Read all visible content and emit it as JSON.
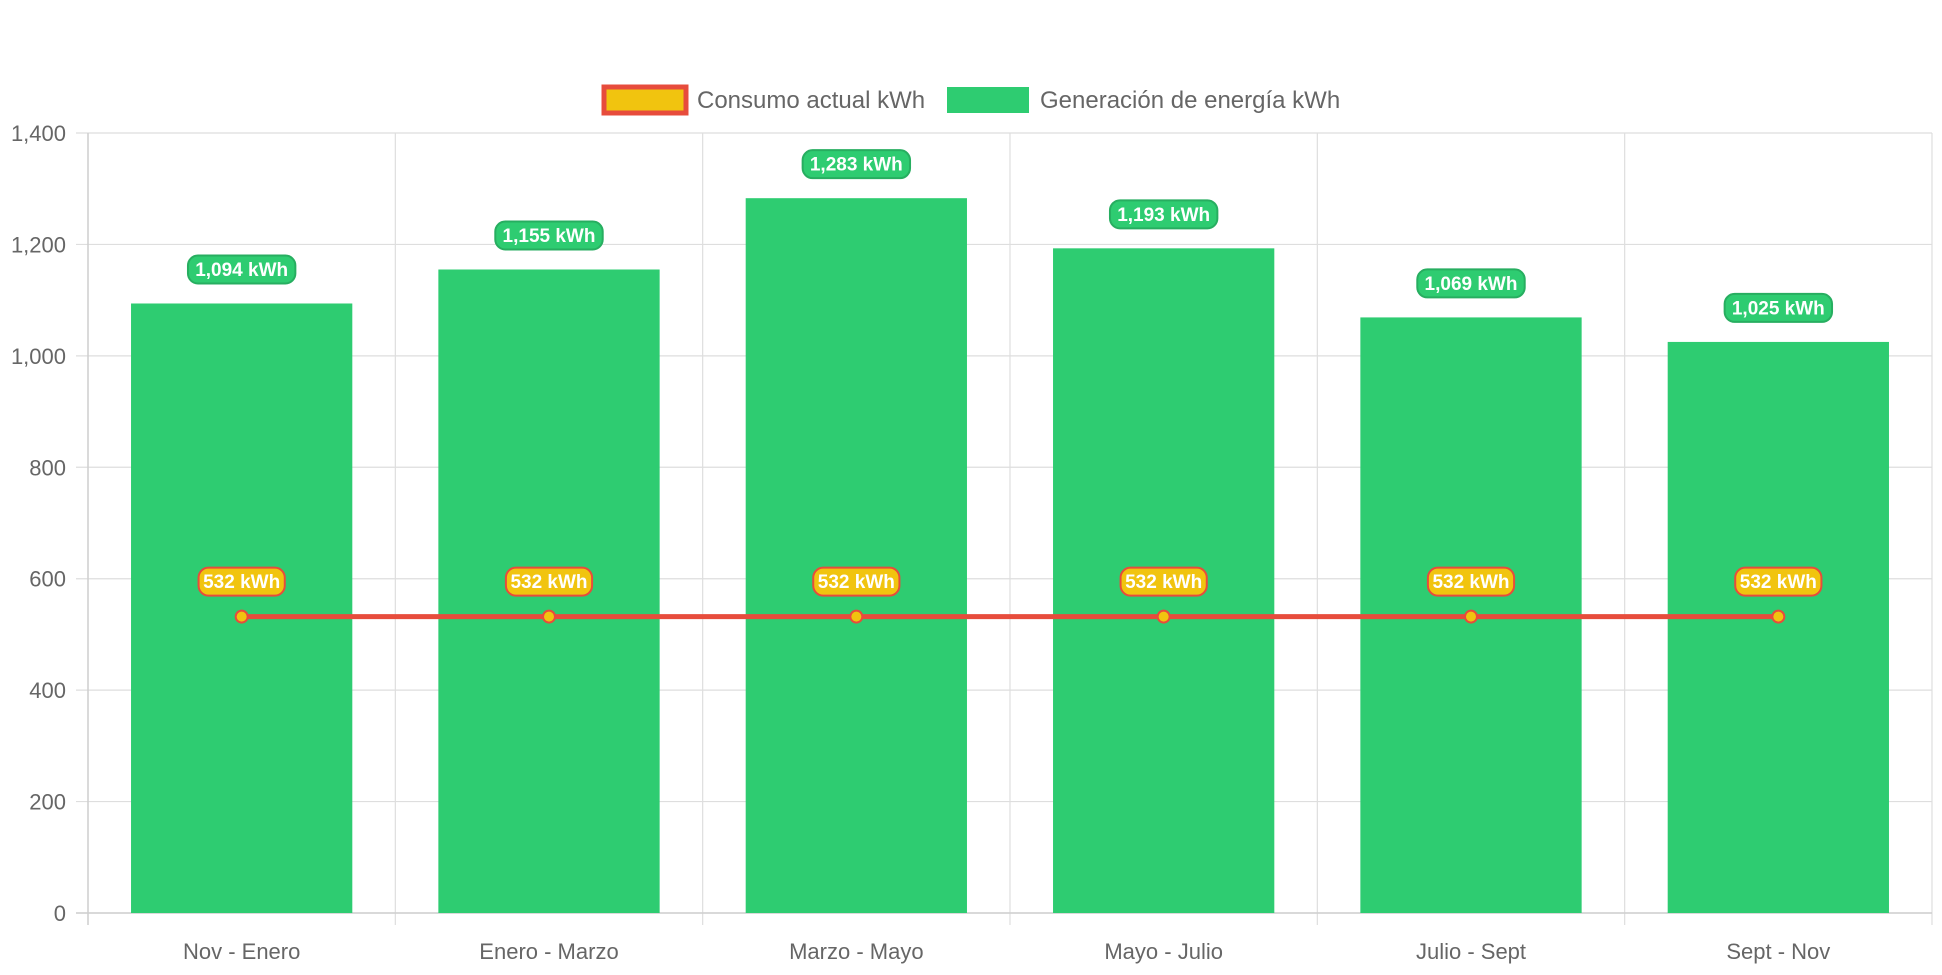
{
  "chart_data": {
    "type": "bar",
    "title": "",
    "xlabel": "",
    "ylabel": "",
    "categories": [
      "Nov - Enero",
      "Enero - Marzo",
      "Marzo - Mayo",
      "Mayo - Julio",
      "Julio - Sept",
      "Sept - Nov"
    ],
    "ylim": [
      0,
      1400
    ],
    "yticks": [
      0,
      200,
      400,
      600,
      800,
      1000,
      1200,
      1400
    ],
    "ytick_labels": [
      "0",
      "200",
      "400",
      "600",
      "800",
      "1,000",
      "1,200",
      "1,400"
    ],
    "grid": true,
    "legend_position": "top-center",
    "series": [
      {
        "name": "Consumo actual kWh",
        "type": "line",
        "values": [
          532,
          532,
          532,
          532,
          532,
          532
        ],
        "labels": [
          "532 kWh",
          "532 kWh",
          "532 kWh",
          "532 kWh",
          "532 kWh",
          "532 kWh"
        ],
        "color": "#e74c3c",
        "fill_color": "#f1c40f"
      },
      {
        "name": "Generación de energía kWh",
        "type": "bar",
        "values": [
          1094,
          1155,
          1283,
          1193,
          1069,
          1025
        ],
        "labels": [
          "1,094 kWh",
          "1,155 kWh",
          "1,283 kWh",
          "1,193 kWh",
          "1,069 kWh",
          "1,025 kWh"
        ],
        "color": "#2ecc71",
        "label_border_color": "#27ae60"
      }
    ]
  }
}
